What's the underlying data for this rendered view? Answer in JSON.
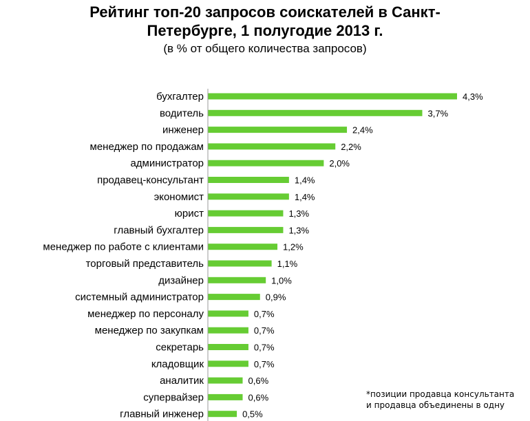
{
  "title_line1": "Рейтинг топ-20 запросов соискателей в Санкт-",
  "title_line2": "Петербурге,  1 полугодие 2013 г.",
  "subtitle": "(в % от общего количества запросов)",
  "footnote_line1": "*позиции продавца консультанта",
  "footnote_line2": "и продавца объединены в одну",
  "colors": {
    "bar": "#66cc33",
    "axis": "#9a9a9a"
  },
  "chart_data": {
    "type": "bar",
    "orientation": "horizontal",
    "title": "Рейтинг топ-20 запросов соискателей в Санкт-Петербурге,  1 полугодие 2013 г.",
    "subtitle": "(в % от общего количества запросов)",
    "unit": "%",
    "grid": false,
    "legend": "none",
    "xlim": [
      0,
      4.3
    ],
    "categories": [
      "бухгалтер",
      "водитель",
      "инженер",
      "менеджер по продажам",
      "администратор",
      "продавец-консультант",
      "экономист",
      "юрист",
      "главный бухгалтер",
      "менеджер по работе с клиентами",
      "торговый представитель",
      "дизайнер",
      "системный администратор",
      "менеджер по персоналу",
      "менеджер по закупкам",
      "секретарь",
      "кладовщик",
      "аналитик",
      "супервайзер",
      "главный инженер"
    ],
    "values": [
      4.3,
      3.7,
      2.4,
      2.2,
      2.0,
      1.4,
      1.4,
      1.3,
      1.3,
      1.2,
      1.1,
      1.0,
      0.9,
      0.7,
      0.7,
      0.7,
      0.7,
      0.6,
      0.6,
      0.5
    ],
    "value_labels": [
      "4,3%",
      "3,7%",
      "2,4%",
      "2,2%",
      "2,0%",
      "1,4%",
      "1,4%",
      "1,3%",
      "1,3%",
      "1,2%",
      "1,1%",
      "1,0%",
      "0,9%",
      "0,7%",
      "0,7%",
      "0,7%",
      "0,7%",
      "0,6%",
      "0,6%",
      "0,5%"
    ]
  }
}
